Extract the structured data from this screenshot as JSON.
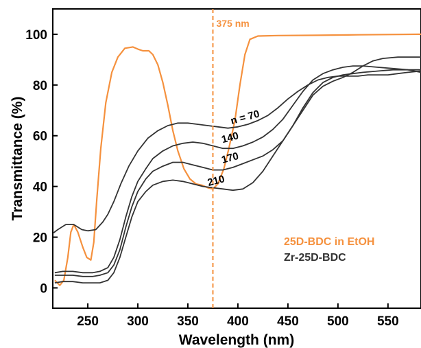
{
  "chart_data": {
    "type": "line",
    "xlabel": "Wavelength (nm)",
    "ylabel": "Transmittance (%)",
    "xlim": [
      215,
      583
    ],
    "ylim": [
      -8,
      110
    ],
    "xticks": [
      250,
      300,
      350,
      400,
      450,
      500,
      550
    ],
    "yticks": [
      0,
      20,
      40,
      60,
      80,
      100
    ],
    "grid": false,
    "vline": {
      "x": 375,
      "label": "375 nm",
      "color": "#F5913E"
    },
    "legend": [
      {
        "label": "25D-BDC in EtOH",
        "color": "#F5913E"
      },
      {
        "label": "Zr-25D-BDC",
        "color": "#333333"
      }
    ],
    "series": [
      {
        "name": "25D-BDC in EtOH",
        "color": "#F5913E",
        "points": [
          [
            217,
            3
          ],
          [
            222,
            1
          ],
          [
            226,
            3
          ],
          [
            230,
            12
          ],
          [
            233,
            22
          ],
          [
            236,
            25
          ],
          [
            240,
            22
          ],
          [
            245,
            16
          ],
          [
            249,
            12
          ],
          [
            253,
            11
          ],
          [
            256,
            18
          ],
          [
            259,
            35
          ],
          [
            263,
            55
          ],
          [
            268,
            73
          ],
          [
            274,
            85
          ],
          [
            280,
            91
          ],
          [
            287,
            94.5
          ],
          [
            295,
            95
          ],
          [
            301,
            94
          ],
          [
            305,
            93.5
          ],
          [
            311,
            93.5
          ],
          [
            315,
            92
          ],
          [
            320,
            88
          ],
          [
            325,
            81
          ],
          [
            330,
            72
          ],
          [
            335,
            62
          ],
          [
            340,
            54
          ],
          [
            346,
            47
          ],
          [
            352,
            43
          ],
          [
            358,
            41
          ],
          [
            364,
            40.5
          ],
          [
            370,
            39.5
          ],
          [
            375,
            39
          ],
          [
            380,
            41
          ],
          [
            386,
            47
          ],
          [
            391,
            55
          ],
          [
            397,
            66
          ],
          [
            402,
            80
          ],
          [
            407,
            92
          ],
          [
            412,
            98
          ],
          [
            420,
            99.3
          ],
          [
            440,
            99.5
          ],
          [
            480,
            99.6
          ],
          [
            520,
            99.8
          ],
          [
            583,
            100
          ]
        ]
      },
      {
        "name": "n = 70",
        "color": "#333333",
        "points": [
          [
            215,
            21.5
          ],
          [
            220,
            23
          ],
          [
            228,
            25
          ],
          [
            236,
            25
          ],
          [
            244,
            23
          ],
          [
            250,
            22.5
          ],
          [
            258,
            23
          ],
          [
            265,
            26
          ],
          [
            270,
            29
          ],
          [
            276,
            34
          ],
          [
            283,
            41
          ],
          [
            291,
            48
          ],
          [
            300,
            54
          ],
          [
            310,
            59
          ],
          [
            320,
            62
          ],
          [
            330,
            64
          ],
          [
            340,
            65
          ],
          [
            350,
            65
          ],
          [
            360,
            64.5
          ],
          [
            370,
            64
          ],
          [
            380,
            63.5
          ],
          [
            390,
            63
          ],
          [
            400,
            63.5
          ],
          [
            410,
            64.5
          ],
          [
            420,
            66
          ],
          [
            430,
            68
          ],
          [
            440,
            71
          ],
          [
            450,
            74.5
          ],
          [
            460,
            77.5
          ],
          [
            470,
            80
          ],
          [
            480,
            82
          ],
          [
            490,
            83
          ],
          [
            500,
            83.5
          ],
          [
            510,
            83.5
          ],
          [
            520,
            83.5
          ],
          [
            530,
            84
          ],
          [
            540,
            84
          ],
          [
            550,
            84
          ],
          [
            560,
            84.5
          ],
          [
            570,
            85
          ],
          [
            583,
            85.5
          ]
        ]
      },
      {
        "name": "140",
        "color": "#333333",
        "points": [
          [
            217,
            6
          ],
          [
            225,
            6.5
          ],
          [
            235,
            6.5
          ],
          [
            245,
            6
          ],
          [
            255,
            6
          ],
          [
            262,
            6.5
          ],
          [
            270,
            8
          ],
          [
            276,
            12
          ],
          [
            282,
            19
          ],
          [
            288,
            28
          ],
          [
            294,
            36
          ],
          [
            300,
            42
          ],
          [
            308,
            47
          ],
          [
            315,
            51
          ],
          [
            325,
            54
          ],
          [
            335,
            56
          ],
          [
            345,
            57
          ],
          [
            355,
            57.5
          ],
          [
            365,
            57
          ],
          [
            375,
            56
          ],
          [
            385,
            55
          ],
          [
            395,
            55
          ],
          [
            405,
            56
          ],
          [
            415,
            57.5
          ],
          [
            425,
            59.5
          ],
          [
            435,
            62.5
          ],
          [
            445,
            66.5
          ],
          [
            455,
            72
          ],
          [
            465,
            77.5
          ],
          [
            475,
            82
          ],
          [
            485,
            84.5
          ],
          [
            495,
            86
          ],
          [
            505,
            87
          ],
          [
            515,
            87.5
          ],
          [
            525,
            87.5
          ],
          [
            540,
            87
          ],
          [
            555,
            86.5
          ],
          [
            570,
            86
          ],
          [
            583,
            85
          ]
        ]
      },
      {
        "name": "170",
        "color": "#333333",
        "points": [
          [
            217,
            5
          ],
          [
            225,
            5
          ],
          [
            235,
            5
          ],
          [
            245,
            4.5
          ],
          [
            255,
            4.5
          ],
          [
            262,
            5
          ],
          [
            270,
            6
          ],
          [
            276,
            9
          ],
          [
            282,
            15
          ],
          [
            288,
            24
          ],
          [
            294,
            32
          ],
          [
            300,
            38
          ],
          [
            308,
            43
          ],
          [
            315,
            46
          ],
          [
            325,
            48
          ],
          [
            335,
            49.5
          ],
          [
            345,
            49.5
          ],
          [
            355,
            48.5
          ],
          [
            365,
            47.5
          ],
          [
            375,
            46.5
          ],
          [
            385,
            46.5
          ],
          [
            395,
            47.5
          ],
          [
            405,
            49
          ],
          [
            415,
            50.5
          ],
          [
            425,
            52
          ],
          [
            435,
            54.5
          ],
          [
            445,
            58
          ],
          [
            455,
            64
          ],
          [
            465,
            71
          ],
          [
            475,
            77
          ],
          [
            485,
            81
          ],
          [
            495,
            83
          ],
          [
            505,
            84
          ],
          [
            515,
            84.5
          ],
          [
            525,
            85
          ],
          [
            540,
            85.5
          ],
          [
            555,
            86
          ],
          [
            583,
            86
          ]
        ]
      },
      {
        "name": "210",
        "color": "#333333",
        "points": [
          [
            217,
            2
          ],
          [
            225,
            2.5
          ],
          [
            235,
            2.5
          ],
          [
            245,
            2
          ],
          [
            255,
            2
          ],
          [
            262,
            2
          ],
          [
            270,
            3
          ],
          [
            276,
            6
          ],
          [
            282,
            12
          ],
          [
            288,
            20
          ],
          [
            294,
            28
          ],
          [
            300,
            34
          ],
          [
            308,
            38
          ],
          [
            315,
            40.5
          ],
          [
            325,
            42
          ],
          [
            335,
            42.5
          ],
          [
            345,
            42
          ],
          [
            355,
            41
          ],
          [
            365,
            40
          ],
          [
            375,
            39.5
          ],
          [
            385,
            39
          ],
          [
            395,
            38.5
          ],
          [
            405,
            39
          ],
          [
            415,
            41.5
          ],
          [
            425,
            46
          ],
          [
            435,
            52
          ],
          [
            445,
            58
          ],
          [
            455,
            64
          ],
          [
            465,
            70
          ],
          [
            475,
            76
          ],
          [
            485,
            79.5
          ],
          [
            495,
            81.5
          ],
          [
            505,
            83
          ],
          [
            515,
            85
          ],
          [
            525,
            87.5
          ],
          [
            535,
            89.5
          ],
          [
            545,
            90.5
          ],
          [
            560,
            91
          ],
          [
            583,
            91
          ]
        ]
      }
    ],
    "curve_labels": [
      {
        "text": "n = 70",
        "x": 408,
        "y": 66
      },
      {
        "text": "140",
        "x": 393,
        "y": 58
      },
      {
        "text": "170",
        "x": 393,
        "y": 50
      },
      {
        "text": "210",
        "x": 379,
        "y": 41
      }
    ]
  }
}
